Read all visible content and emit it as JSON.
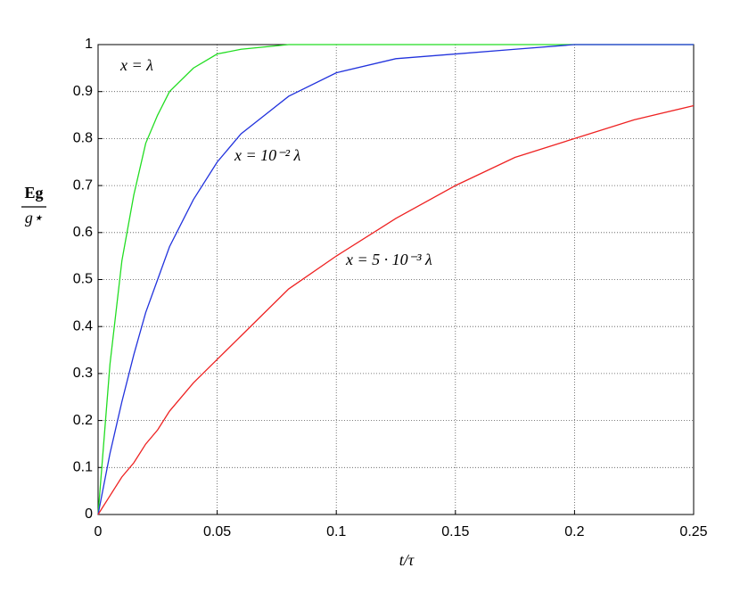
{
  "chart_data": {
    "type": "line",
    "x_label": "t/τ",
    "y_label_numerator": "Eg",
    "y_label_denominator": "g⋆",
    "x": [
      0,
      0.005,
      0.01,
      0.015,
      0.02,
      0.025,
      0.03,
      0.04,
      0.05,
      0.06,
      0.08,
      0.1,
      0.125,
      0.15,
      0.175,
      0.2,
      0.225,
      0.25
    ],
    "series": [
      {
        "name": "x = λ",
        "color": "#22dd22",
        "values": [
          0,
          0.32,
          0.54,
          0.68,
          0.79,
          0.85,
          0.9,
          0.95,
          0.98,
          0.99,
          1,
          1,
          1,
          1,
          1,
          1,
          1,
          1
        ]
      },
      {
        "name": "x = 10⁻² λ",
        "color": "#2233dd",
        "values": [
          0,
          0.13,
          0.24,
          0.34,
          0.43,
          0.5,
          0.57,
          0.67,
          0.75,
          0.81,
          0.89,
          0.94,
          0.97,
          0.98,
          0.99,
          1,
          1,
          1
        ]
      },
      {
        "name": "x = 5 · 10⁻³ λ",
        "color": "#ee2222",
        "values": [
          0,
          0.04,
          0.08,
          0.11,
          0.15,
          0.18,
          0.22,
          0.28,
          0.33,
          0.38,
          0.48,
          0.55,
          0.63,
          0.7,
          0.76,
          0.8,
          0.84,
          0.87
        ]
      }
    ],
    "xlim": [
      0,
      0.25
    ],
    "xticks": [
      0,
      0.05,
      0.1,
      0.15,
      0.2,
      0.25
    ],
    "ylim": [
      0,
      1
    ],
    "yticks": [
      0,
      0.1,
      0.2,
      0.3,
      0.4,
      0.5,
      0.6,
      0.7,
      0.8,
      0.9,
      1
    ],
    "grid": true
  }
}
